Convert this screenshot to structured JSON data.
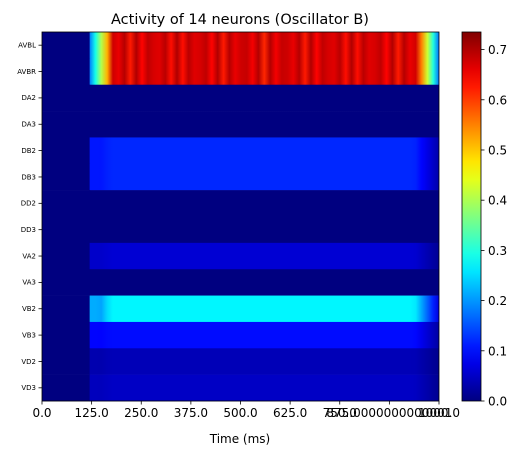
{
  "chart_data": {
    "type": "heatmap",
    "title": "Activity of 14 neurons (Oscillator B)",
    "xlabel": "Time (ms)",
    "ylabel": "",
    "xlim": [
      0,
      1000
    ],
    "x_tick_labels": [
      "0.0",
      "125.0",
      "250.0",
      "375.0",
      "500.0",
      "625.0",
      "875.0000000000001",
      "1000.0",
      "750.0",
      "1000.0"
    ],
    "x_ticks_note": "overlapping labels as printed",
    "x_tick_values": [
      0,
      125,
      250,
      375,
      500,
      625,
      750,
      875,
      1000
    ],
    "x_tick_text": [
      "0.0",
      "125.0",
      "250.0",
      "375.0",
      "500.0",
      "625.0",
      "750.0",
      "875.0000000000001",
      "1000.0"
    ],
    "neurons": [
      "AVBL",
      "AVBR",
      "DA2",
      "DA3",
      "DB2",
      "DB3",
      "DD2",
      "DD3",
      "VA2",
      "VA3",
      "VB2",
      "VB3",
      "VD2",
      "VD3"
    ],
    "onset_ms": 120,
    "offset_ms": 1000,
    "steady_values": [
      0.7,
      0.7,
      0.0,
      0.0,
      0.12,
      0.12,
      0.0,
      0.0,
      0.06,
      0.0,
      0.27,
      0.1,
      0.04,
      0.05
    ],
    "peak_values": [
      0.2,
      0.2,
      0.0,
      0.0,
      0.1,
      0.1,
      0.0,
      0.0,
      0.05,
      0.0,
      0.18,
      0.09,
      0.03,
      0.04
    ],
    "oscillating": [
      true,
      true,
      false,
      false,
      false,
      false,
      false,
      false,
      false,
      false,
      false,
      false,
      false,
      false
    ],
    "colorbar": {
      "min": 0.0,
      "max": 0.735,
      "ticks": [
        0.0,
        0.1,
        0.2,
        0.3,
        0.4,
        0.5,
        0.6,
        0.7
      ],
      "tick_labels": [
        "0.0",
        "0.1",
        "0.2",
        "0.3",
        "0.4",
        "0.5",
        "0.6",
        "0.7"
      ],
      "colormap": "jet"
    }
  }
}
